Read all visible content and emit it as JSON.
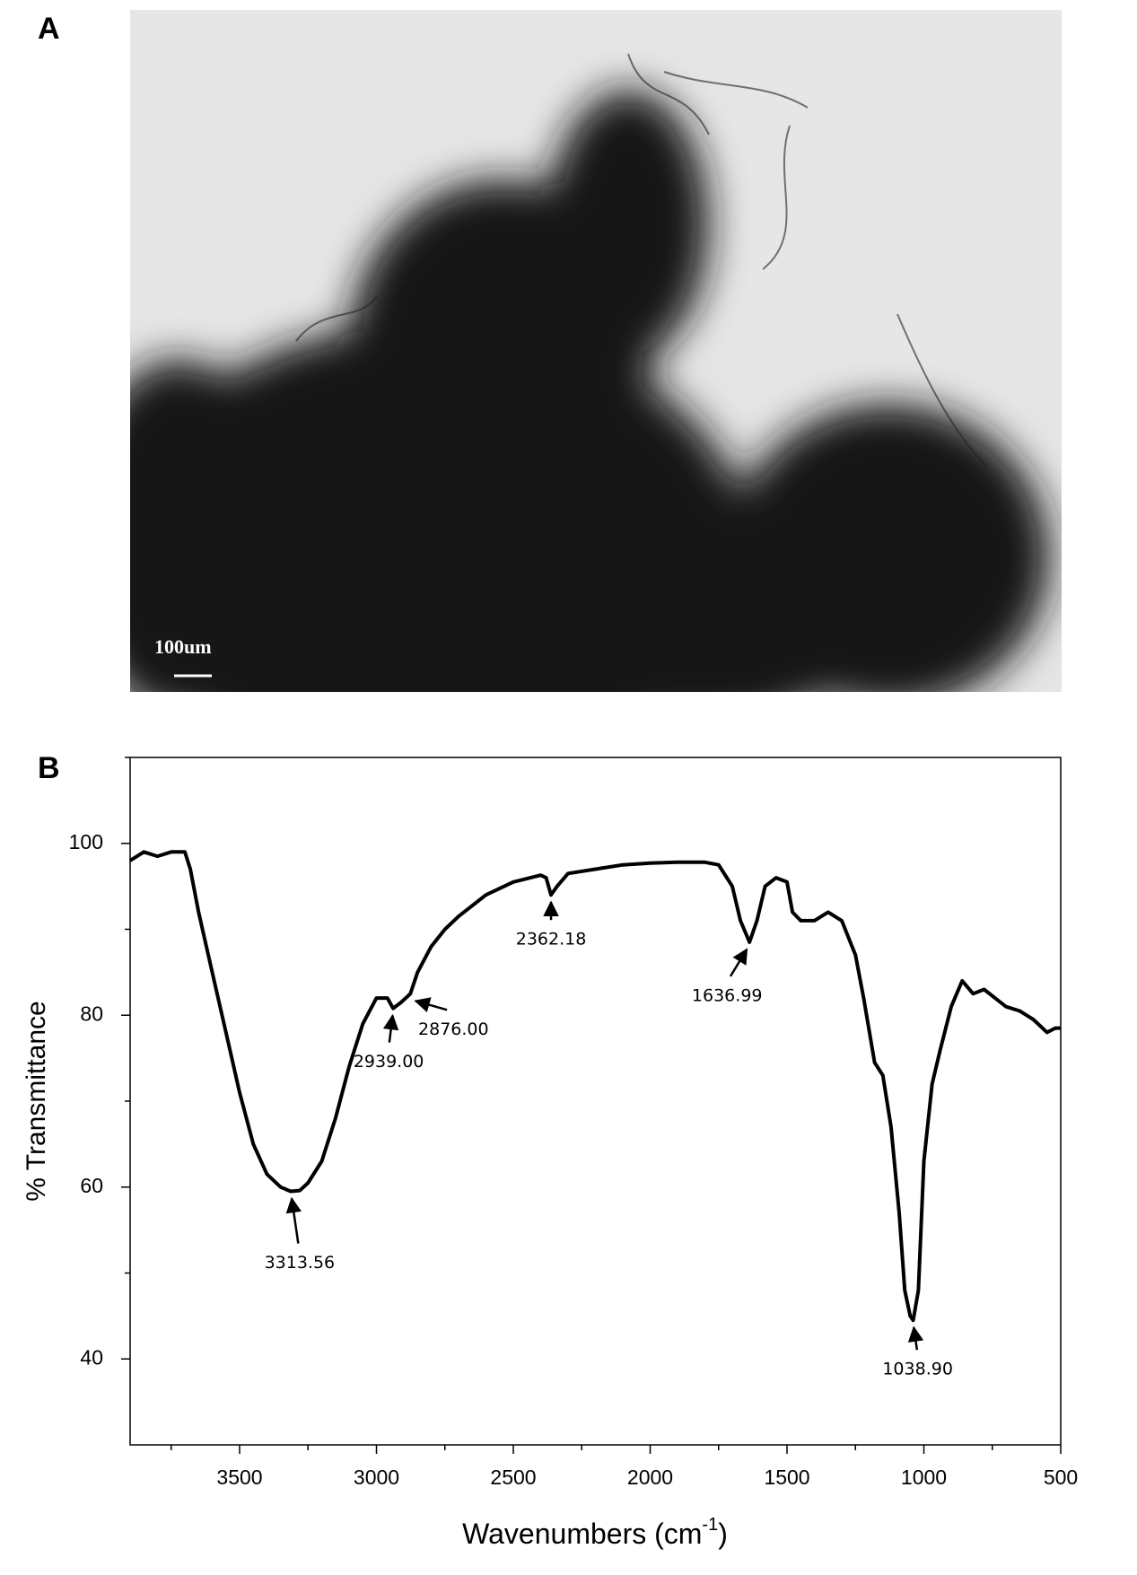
{
  "panels": {
    "a_label": "A",
    "b_label": "B",
    "scale_bar": "100um"
  },
  "chart_data": {
    "type": "line",
    "x_label": "Wavenumbers (cm",
    "x_label_sup": "-1",
    "x_label_end": ")",
    "y_label": "% Transmittance",
    "xlim": [
      3900,
      500
    ],
    "ylim": [
      30,
      110
    ],
    "xticks": [
      3500,
      3000,
      2500,
      2000,
      1500,
      1000,
      500
    ],
    "xticks_minor": [
      3750,
      3250,
      2750,
      2250,
      1750,
      1250,
      750
    ],
    "yticks": [
      40,
      60,
      80,
      100
    ],
    "yticks_minor": [
      50,
      70,
      90,
      110
    ],
    "series": [
      {
        "color": "#000000",
        "x": [
          3900,
          3850,
          3800,
          3750,
          3700,
          3680,
          3650,
          3600,
          3550,
          3500,
          3450,
          3400,
          3350,
          3313.56,
          3280,
          3250,
          3200,
          3150,
          3100,
          3050,
          3000,
          2960,
          2939,
          2910,
          2876,
          2850,
          2800,
          2750,
          2700,
          2600,
          2500,
          2400,
          2380,
          2362.18,
          2340,
          2300,
          2200,
          2100,
          2000,
          1900,
          1800,
          1750,
          1700,
          1670,
          1636.99,
          1610,
          1580,
          1540,
          1500,
          1480,
          1450,
          1400,
          1350,
          1300,
          1250,
          1220,
          1180,
          1150,
          1120,
          1090,
          1070,
          1050,
          1038.9,
          1020,
          1000,
          970,
          940,
          900,
          860,
          820,
          780,
          740,
          700,
          650,
          600,
          550,
          520,
          500
        ],
        "values": [
          98,
          99,
          98.5,
          99,
          99,
          97,
          92,
          85,
          78,
          71,
          65,
          61.5,
          60,
          59.5,
          59.6,
          60.5,
          63,
          68,
          74,
          79,
          82,
          82,
          80.8,
          81.5,
          82.5,
          85,
          88,
          90,
          91.5,
          94,
          95.5,
          96.3,
          96,
          94,
          95,
          96.5,
          97,
          97.5,
          97.7,
          97.8,
          97.8,
          97.5,
          95,
          91,
          88.5,
          91,
          95,
          96,
          95.5,
          92,
          91,
          91,
          92,
          91,
          87,
          82,
          74.5,
          73,
          67,
          57,
          48,
          45,
          44.5,
          48,
          63,
          72,
          76,
          81,
          84,
          82.5,
          83,
          82,
          81,
          80.5,
          79.5,
          78,
          78.5,
          78.5
        ]
      }
    ],
    "annotations": [
      {
        "text": "3313.56",
        "x": 3313.56,
        "y": 59.5
      },
      {
        "text": "2939.00",
        "x": 2939,
        "y": 80.8
      },
      {
        "text": "2876.00",
        "x": 2876,
        "y": 82.5
      },
      {
        "text": "2362.18",
        "x": 2362.18,
        "y": 94
      },
      {
        "text": "1636.99",
        "x": 1636.99,
        "y": 88.5
      },
      {
        "text": "1038.90",
        "x": 1038.9,
        "y": 44.5
      }
    ]
  }
}
